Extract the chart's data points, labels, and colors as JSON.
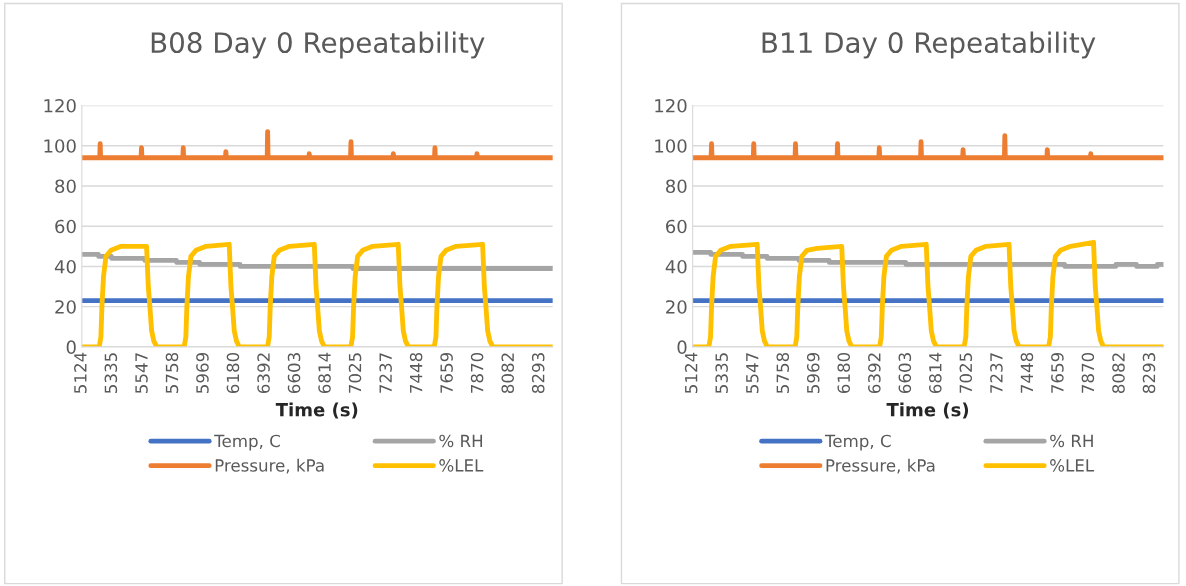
{
  "chart_data": [
    {
      "type": "line",
      "title": "B08 Day 0 Repeatability",
      "xlabel": "Time (s)",
      "xlim": [
        5124,
        8383
      ],
      "xticks": [
        5124,
        5335,
        5547,
        5758,
        5969,
        6180,
        6392,
        6603,
        6814,
        7025,
        7237,
        7448,
        7659,
        7870,
        8082,
        8293
      ],
      "ylim": [
        0,
        120
      ],
      "yticks": [
        0,
        20,
        40,
        60,
        80,
        100,
        120
      ],
      "grid": "y",
      "legend": "bottom",
      "series": [
        {
          "name": "Temp, C",
          "color": "#4472c4",
          "x": [
            5124,
            8383
          ],
          "values": [
            23,
            23
          ]
        },
        {
          "name": "Pressure, kPa",
          "color": "#ed7d31",
          "x": [
            5124,
            5248,
            5251,
            5254,
            5534,
            5537,
            5540,
            5823,
            5826,
            5829,
            6118,
            6121,
            6124,
            6407,
            6410,
            6413,
            6695,
            6698,
            6701,
            6984,
            6987,
            6990,
            7277,
            7280,
            7283,
            7565,
            7568,
            7571,
            7856,
            7859,
            7862,
            8383
          ],
          "values": [
            94,
            94,
            101,
            94,
            94,
            99,
            94,
            94,
            99,
            94,
            94,
            97,
            94,
            94,
            107,
            94,
            94,
            96,
            94,
            94,
            102,
            94,
            94,
            96,
            94,
            94,
            99,
            94,
            94,
            96,
            94,
            94
          ]
        },
        {
          "name": "% RH",
          "color": "#a5a5a5",
          "x": [
            5124,
            5239,
            5240,
            5329,
            5330,
            5559,
            5560,
            5779,
            5780,
            5939,
            5940,
            6219,
            6220,
            6999,
            7000,
            8383
          ],
          "values": [
            46,
            46,
            45,
            45,
            44,
            44,
            43,
            43,
            42,
            42,
            41,
            41,
            40,
            40,
            39,
            39
          ]
        },
        {
          "name": "%LEL",
          "color": "#ffc000",
          "x": [
            5124,
            5244,
            5256,
            5263,
            5274,
            5291,
            5326,
            5396,
            5572,
            5584,
            5595,
            5607,
            5622,
            5642,
            5832,
            5844,
            5851,
            5862,
            5879,
            5914,
            5984,
            6144,
            6156,
            6167,
            6179,
            6194,
            6214,
            6409,
            6421,
            6428,
            6439,
            6456,
            6491,
            6561,
            6733,
            6745,
            6756,
            6768,
            6783,
            6803,
            6986,
            6998,
            7005,
            7016,
            7033,
            7068,
            7138,
            7314,
            7326,
            7337,
            7349,
            7364,
            7384,
            7563,
            7575,
            7582,
            7593,
            7610,
            7645,
            7715,
            7898,
            7910,
            7921,
            7933,
            7948,
            7968,
            8383
          ],
          "values": [
            0,
            0,
            5,
            20,
            35,
            45,
            48,
            50,
            50,
            30,
            20,
            8,
            3,
            0,
            0,
            5,
            20,
            35,
            45,
            48,
            50,
            51,
            30,
            20,
            8,
            3,
            0,
            0,
            5,
            20,
            35,
            45,
            48,
            50,
            51,
            30,
            20,
            8,
            3,
            0,
            0,
            5,
            20,
            35,
            45,
            48,
            50,
            51,
            30,
            20,
            8,
            3,
            0,
            0,
            5,
            20,
            35,
            45,
            48,
            50,
            51,
            30,
            20,
            8,
            3,
            0,
            0
          ]
        }
      ]
    },
    {
      "type": "line",
      "title": "B11 Day 0 Repeatability",
      "xlabel": "Time (s)",
      "xlim": [
        5124,
        8383
      ],
      "xticks": [
        5124,
        5335,
        5547,
        5758,
        5969,
        6180,
        6392,
        6603,
        6814,
        7025,
        7237,
        7448,
        7659,
        7870,
        8082,
        8293
      ],
      "ylim": [
        0,
        120
      ],
      "yticks": [
        0,
        20,
        40,
        60,
        80,
        100,
        120
      ],
      "grid": "y",
      "legend": "bottom",
      "series": [
        {
          "name": "Temp, C",
          "color": "#4472c4",
          "x": [
            5124,
            8383
          ],
          "values": [
            23,
            23
          ]
        },
        {
          "name": "Pressure, kPa",
          "color": "#ed7d31",
          "x": [
            5124,
            5252,
            5255,
            5258,
            5544,
            5547,
            5550,
            5833,
            5836,
            5839,
            6124,
            6127,
            6130,
            6413,
            6416,
            6419,
            6702,
            6705,
            6708,
            6993,
            6996,
            6999,
            7282,
            7285,
            7288,
            7576,
            7579,
            7582,
            7877,
            7880,
            7883,
            8383
          ],
          "values": [
            94,
            94,
            101,
            94,
            94,
            101,
            94,
            94,
            101,
            94,
            94,
            101,
            94,
            94,
            99,
            94,
            94,
            102,
            94,
            94,
            98,
            94,
            94,
            105,
            94,
            94,
            98,
            94,
            94,
            96,
            94,
            94
          ]
        },
        {
          "name": "% RH",
          "color": "#a5a5a5",
          "x": [
            5124,
            5249,
            5250,
            5469,
            5470,
            5639,
            5640,
            5859,
            5860,
            6069,
            6070,
            6599,
            6600,
            7699,
            7700,
            8053,
            8054,
            8196,
            8197,
            8340,
            8341,
            8383
          ],
          "values": [
            47,
            47,
            46,
            46,
            45,
            45,
            44,
            44,
            43,
            43,
            42,
            42,
            41,
            41,
            40,
            40,
            41,
            41,
            40,
            40,
            41,
            41
          ]
        },
        {
          "name": "%LEL",
          "color": "#ffc000",
          "x": [
            5124,
            5236,
            5248,
            5255,
            5266,
            5283,
            5318,
            5388,
            5571,
            5583,
            5594,
            5606,
            5621,
            5641,
            5833,
            5845,
            5852,
            5863,
            5880,
            5915,
            5985,
            6156,
            6168,
            6179,
            6191,
            6206,
            6226,
            6418,
            6430,
            6437,
            6448,
            6465,
            6500,
            6570,
            6741,
            6753,
            6764,
            6776,
            6791,
            6811,
            7003,
            7015,
            7022,
            7033,
            7050,
            7085,
            7155,
            7314,
            7326,
            7337,
            7349,
            7364,
            7384,
            7588,
            7600,
            7607,
            7618,
            7635,
            7670,
            7740,
            7899,
            7911,
            7922,
            7934,
            7949,
            7969,
            8383
          ],
          "values": [
            0,
            0,
            5,
            20,
            35,
            45,
            48,
            50,
            51,
            30,
            20,
            8,
            3,
            0,
            0,
            5,
            20,
            35,
            45,
            48,
            49,
            50,
            30,
            20,
            8,
            3,
            0,
            0,
            5,
            20,
            35,
            45,
            48,
            50,
            51,
            30,
            20,
            8,
            3,
            0,
            0,
            5,
            20,
            35,
            45,
            48,
            50,
            51,
            30,
            20,
            8,
            3,
            0,
            0,
            5,
            20,
            35,
            45,
            48,
            50,
            52,
            30,
            20,
            8,
            3,
            0,
            0
          ]
        }
      ]
    }
  ]
}
